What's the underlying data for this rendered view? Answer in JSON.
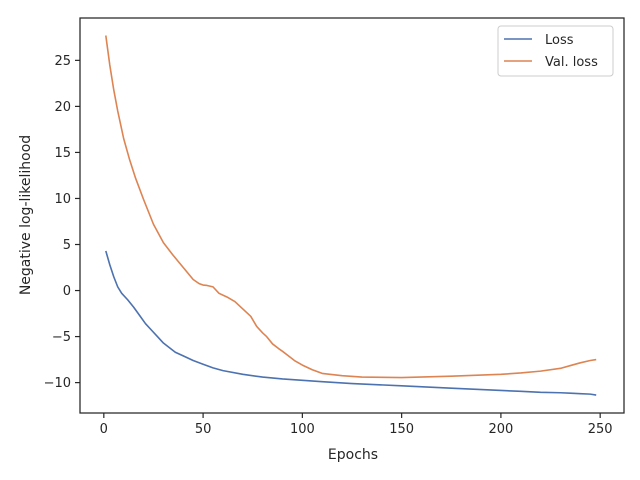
{
  "chart_data": {
    "type": "line",
    "xlabel": "Epochs",
    "ylabel": "Negative log-likelihood",
    "xlim": [
      -12,
      262
    ],
    "ylim": [
      -13.3,
      29.6
    ],
    "xticks": [
      0,
      50,
      100,
      150,
      200,
      250
    ],
    "yticks": [
      -10,
      -5,
      0,
      5,
      10,
      15,
      20,
      25
    ],
    "grid": false,
    "legend_position": "top-right",
    "series": [
      {
        "name": "Loss",
        "color": "#4c72b0",
        "x": [
          1,
          3,
          5,
          7,
          9,
          12,
          15,
          18,
          21,
          24,
          27,
          30,
          33,
          36,
          40,
          45,
          50,
          55,
          60,
          70,
          80,
          90,
          100,
          110,
          125,
          150,
          175,
          200,
          210,
          220,
          230,
          235,
          240,
          245,
          248
        ],
        "y": [
          4.3,
          2.8,
          1.5,
          0.4,
          -0.3,
          -1.0,
          -1.8,
          -2.7,
          -3.6,
          -4.3,
          -5.0,
          -5.7,
          -6.2,
          -6.7,
          -7.1,
          -7.6,
          -8.0,
          -8.4,
          -8.7,
          -9.1,
          -9.4,
          -9.6,
          -9.75,
          -9.9,
          -10.1,
          -10.35,
          -10.6,
          -10.85,
          -10.95,
          -11.05,
          -11.1,
          -11.15,
          -11.2,
          -11.25,
          -11.35
        ]
      },
      {
        "name": "Val. loss",
        "color": "#dd8452",
        "x": [
          1,
          3,
          5,
          7,
          10,
          13,
          16,
          20,
          25,
          30,
          35,
          40,
          45,
          48,
          50,
          52,
          55,
          58,
          62,
          66,
          70,
          74,
          77,
          80,
          82,
          85,
          88,
          90,
          93,
          96,
          100,
          105,
          110,
          120,
          130,
          150,
          175,
          200,
          210,
          220,
          230,
          235,
          240,
          245,
          248
        ],
        "y": [
          27.7,
          24.5,
          21.8,
          19.5,
          16.5,
          14.2,
          12.2,
          9.9,
          7.2,
          5.2,
          3.8,
          2.5,
          1.2,
          0.75,
          0.6,
          0.55,
          0.4,
          -0.3,
          -0.7,
          -1.2,
          -2.0,
          -2.8,
          -3.9,
          -4.6,
          -5.0,
          -5.8,
          -6.3,
          -6.6,
          -7.1,
          -7.6,
          -8.1,
          -8.6,
          -9.0,
          -9.25,
          -9.4,
          -9.45,
          -9.3,
          -9.1,
          -8.95,
          -8.75,
          -8.45,
          -8.15,
          -7.85,
          -7.6,
          -7.5
        ]
      }
    ]
  }
}
